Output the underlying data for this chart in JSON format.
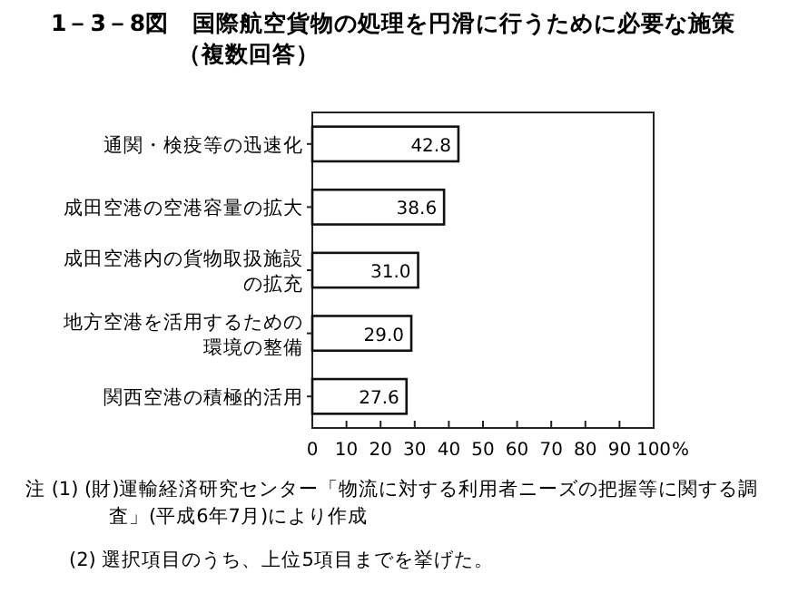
{
  "chart_data": {
    "type": "bar",
    "orientation": "horizontal",
    "title": "1－3－8図　国際航空貨物の処理を円滑に行うために必要な施策",
    "subtitle": "（複数回答）",
    "categories": [
      "通関・検疫等の迅速化",
      "成田空港の空港容量の拡大",
      "成田空港内の貨物取扱施設の拡充",
      "地方空港を活用するための環境の整備",
      "関西空港の積極的活用"
    ],
    "values": [
      42.8,
      38.6,
      31.0,
      29.0,
      27.6
    ],
    "value_labels": [
      "42.8",
      "38.6",
      "31.0",
      "29.0",
      "27.6"
    ],
    "color": "#ffffff",
    "xlim": [
      0,
      100
    ],
    "xticks": [
      0,
      10,
      20,
      30,
      40,
      50,
      60,
      70,
      80,
      90,
      100
    ],
    "xlabel": "%",
    "annotations": [
      "注 (1) (財)運輸経済研究センター「物流に対する利用者ニーズの把握等に関する調査」(平成6年7月)により作成",
      "(2) 選択項目のうち、上位5項目までを挙げた。"
    ]
  }
}
